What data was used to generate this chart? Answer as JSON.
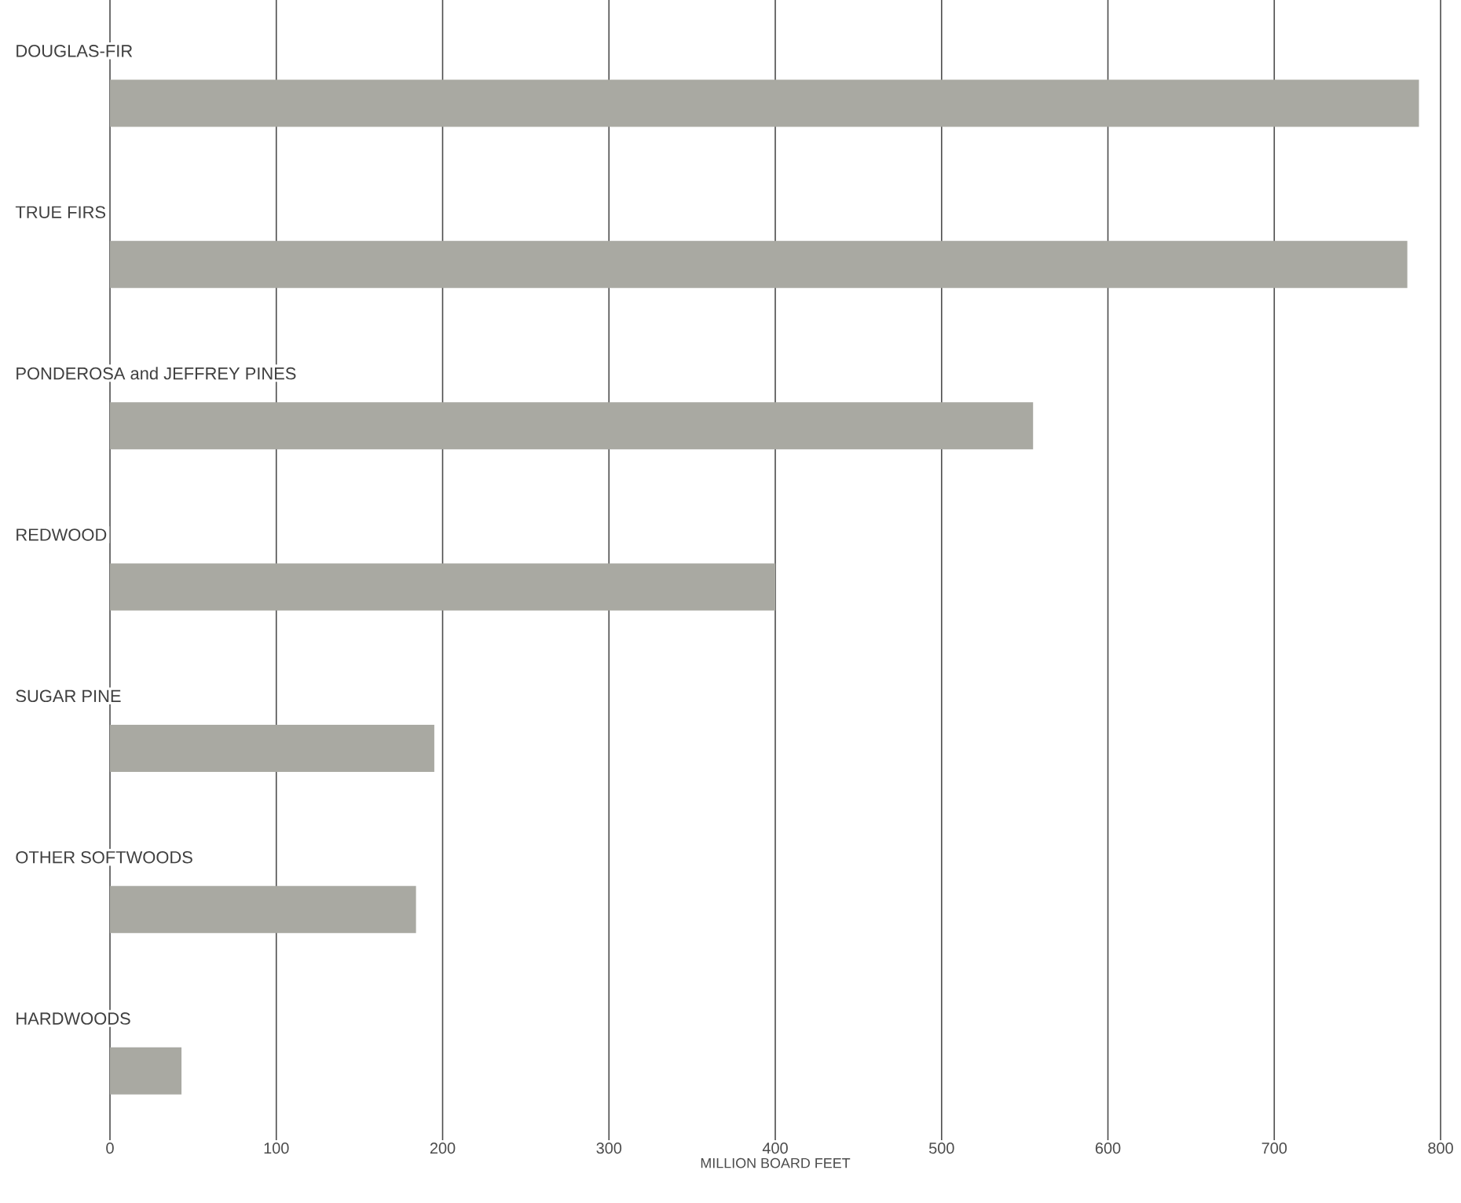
{
  "chart_data": {
    "type": "bar",
    "orientation": "horizontal",
    "xlabel": "MILLION BOARD FEET",
    "categories": [
      "DOUGLAS-FIR",
      "TRUE FIRS",
      "PONDEROSA and JEFFREY PINES",
      "REDWOOD",
      "SUGAR PINE",
      "OTHER SOFTWOODS",
      "HARDWOODS"
    ],
    "values": [
      787,
      780,
      555,
      400,
      195,
      184,
      43
    ],
    "color": "#a9a9a2",
    "xlim": [
      0,
      800
    ],
    "xticks": [
      0,
      100,
      200,
      300,
      400,
      500,
      600,
      700,
      800
    ],
    "grid": "x"
  }
}
